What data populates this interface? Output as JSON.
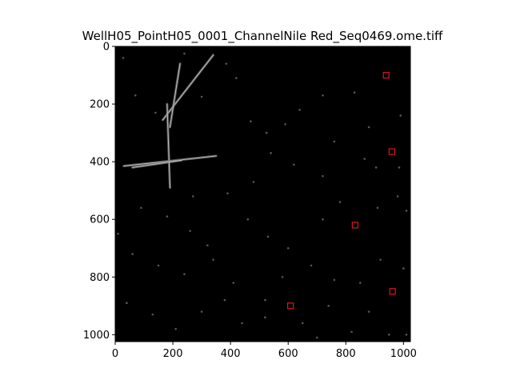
{
  "chart_data": {
    "type": "image",
    "title": "WellH05_PointH05_0001_ChannelNile Red_Seq0469.ome.tiff",
    "xlim": [
      0,
      1024
    ],
    "ylim": [
      1024,
      0
    ],
    "y_inverted": true,
    "x_ticks": [
      "0",
      "200",
      "400",
      "600",
      "800",
      "1000"
    ],
    "y_ticks": [
      "0",
      "200",
      "400",
      "600",
      "800",
      "1000"
    ],
    "x_tick_values": [
      0,
      200,
      400,
      600,
      800,
      1000
    ],
    "y_tick_values": [
      0,
      200,
      400,
      600,
      800,
      1000
    ],
    "grid": false,
    "image": {
      "background": "#000000",
      "colormap": "grayscale",
      "features": [
        {
          "kind": "streak",
          "from": [
            340,
            30
          ],
          "to": [
            165,
            255
          ]
        },
        {
          "kind": "streak",
          "from": [
            225,
            60
          ],
          "to": [
            190,
            280
          ]
        },
        {
          "kind": "streak",
          "from": [
            180,
            200
          ],
          "to": [
            190,
            490
          ]
        },
        {
          "kind": "streak",
          "from": [
            30,
            415
          ],
          "to": [
            350,
            380
          ]
        },
        {
          "kind": "streak",
          "from": [
            60,
            420
          ],
          "to": [
            230,
            395
          ]
        }
      ]
    },
    "markers": {
      "shape": "square",
      "color": "#e0141e",
      "points": [
        {
          "x": 940,
          "y": 100
        },
        {
          "x": 960,
          "y": 365
        },
        {
          "x": 832,
          "y": 620
        },
        {
          "x": 962,
          "y": 850
        },
        {
          "x": 608,
          "y": 900
        }
      ]
    },
    "specks": [
      [
        28,
        40
      ],
      [
        240,
        25
      ],
      [
        385,
        60
      ],
      [
        420,
        110
      ],
      [
        70,
        170
      ],
      [
        140,
        230
      ],
      [
        300,
        175
      ],
      [
        470,
        260
      ],
      [
        525,
        300
      ],
      [
        640,
        220
      ],
      [
        720,
        170
      ],
      [
        760,
        330
      ],
      [
        830,
        160
      ],
      [
        880,
        280
      ],
      [
        990,
        240
      ],
      [
        905,
        420
      ],
      [
        985,
        420
      ],
      [
        865,
        390
      ],
      [
        620,
        410
      ],
      [
        590,
        270
      ],
      [
        540,
        370
      ],
      [
        720,
        450
      ],
      [
        480,
        470
      ],
      [
        390,
        510
      ],
      [
        90,
        560
      ],
      [
        180,
        590
      ],
      [
        260,
        640
      ],
      [
        320,
        690
      ],
      [
        460,
        600
      ],
      [
        530,
        660
      ],
      [
        600,
        700
      ],
      [
        720,
        600
      ],
      [
        780,
        540
      ],
      [
        910,
        560
      ],
      [
        980,
        520
      ],
      [
        1010,
        570
      ],
      [
        60,
        720
      ],
      [
        150,
        760
      ],
      [
        240,
        790
      ],
      [
        340,
        740
      ],
      [
        410,
        820
      ],
      [
        520,
        880
      ],
      [
        580,
        800
      ],
      [
        680,
        760
      ],
      [
        760,
        810
      ],
      [
        850,
        820
      ],
      [
        920,
        740
      ],
      [
        1000,
        770
      ],
      [
        40,
        890
      ],
      [
        130,
        930
      ],
      [
        210,
        980
      ],
      [
        300,
        920
      ],
      [
        380,
        880
      ],
      [
        440,
        960
      ],
      [
        520,
        940
      ],
      [
        650,
        960
      ],
      [
        740,
        900
      ],
      [
        820,
        990
      ],
      [
        880,
        920
      ],
      [
        950,
        1000
      ],
      [
        1010,
        1000
      ],
      [
        700,
        1010
      ],
      [
        270,
        520
      ],
      [
        10,
        650
      ]
    ]
  }
}
